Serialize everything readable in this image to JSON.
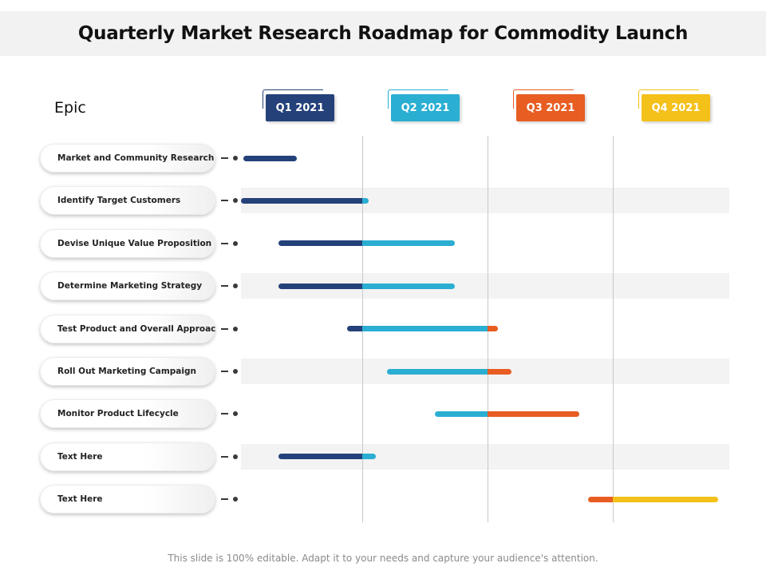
{
  "title": "Quarterly Market Research Roadmap for Commodity Launch",
  "epic_label": "Epic",
  "colors": {
    "q1": "#24417a",
    "q2": "#2aaed2",
    "q3": "#e85d22",
    "q4": "#f4c01a"
  },
  "quarters": [
    {
      "label": "Q1 2021",
      "color": "#24417a"
    },
    {
      "label": "Q2 2021",
      "color": "#2aaed2"
    },
    {
      "label": "Q3 2021",
      "color": "#e85d22"
    },
    {
      "label": "Q4 2021",
      "color": "#f4c01a"
    }
  ],
  "timeline": {
    "start_quarter": 0.0,
    "end_quarter": 4.0
  },
  "epics": [
    {
      "label": "Market and Community Research",
      "start": 0.05,
      "end": 0.48
    },
    {
      "label": "Identify Target Customers",
      "start": 0.03,
      "end": 1.05
    },
    {
      "label": "Devise Unique Value Proposition",
      "start": 0.33,
      "end": 1.74
    },
    {
      "label": "Determine Marketing Strategy",
      "start": 0.33,
      "end": 1.74
    },
    {
      "label": "Test Product and Overall Approach",
      "start": 0.88,
      "end": 2.08
    },
    {
      "label": "Roll Out Marketing Campaign",
      "start": 1.2,
      "end": 2.19
    },
    {
      "label": "Monitor Product Lifecycle",
      "start": 1.58,
      "end": 2.73
    },
    {
      "label": "Text Here",
      "start": 0.33,
      "end": 1.11
    },
    {
      "label": "Text Here",
      "start": 2.8,
      "end": 3.84
    }
  ],
  "footer": "This slide is 100% editable. Adapt it to your needs and capture your audience's attention."
}
